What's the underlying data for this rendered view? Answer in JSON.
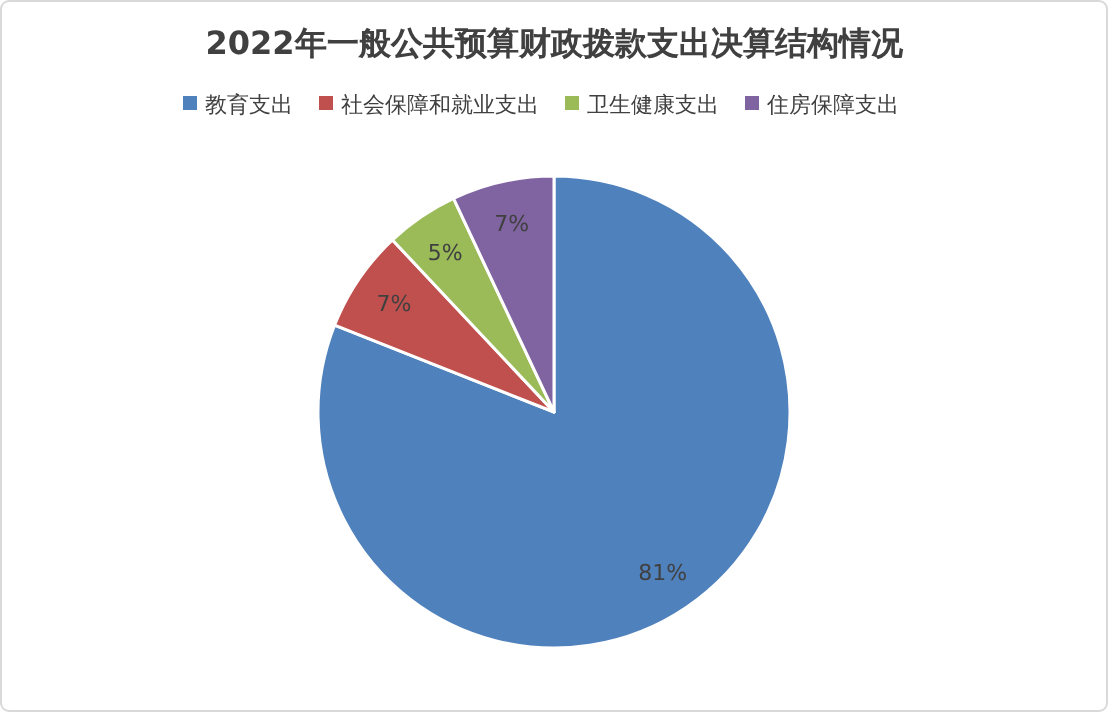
{
  "chart_data": {
    "type": "pie",
    "title": "2022年一般公共预算财政拨款支出决算结构情况",
    "categories": [
      "教育支出",
      "社会保障和就业支出",
      "卫生健康支出",
      "住房保障支出"
    ],
    "values": [
      81,
      7,
      5,
      7
    ],
    "colors": [
      "#4f81bd",
      "#c0504d",
      "#9bbb59",
      "#8064a2"
    ],
    "value_labels": [
      "81%",
      "7%",
      "5%",
      "7%"
    ],
    "legend": "top"
  }
}
